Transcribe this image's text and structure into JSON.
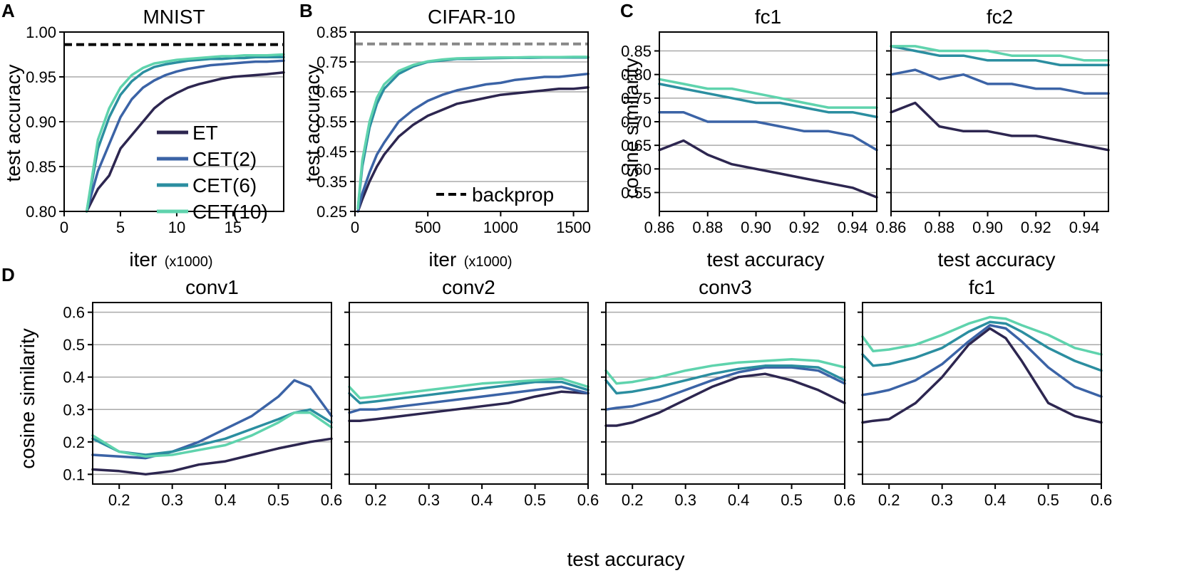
{
  "colors": {
    "ET": "#2d2650",
    "CET(2)": "#3b63a6",
    "CET(6)": "#2b8ea0",
    "CET(10)": "#5fd3ad",
    "grid": "#aaaaaa",
    "backprop_black": "#000000",
    "backprop_gray": "#888888"
  },
  "panel_letters": {
    "A": "A",
    "B": "B",
    "C": "C",
    "D": "D"
  },
  "shared": {
    "series_names": [
      "ET",
      "CET(2)",
      "CET(6)",
      "CET(10)"
    ],
    "backprop_label": "backprop",
    "iter_label": "iter",
    "iter_unit": "(x1000)",
    "test_accuracy_label": "test accuracy",
    "cosine_similarity_label": "cosine similarity"
  },
  "chart_data": [
    {
      "id": "A",
      "type": "line",
      "title": "MNIST",
      "xlabel": "iter (x1000)",
      "ylabel": "test accuracy",
      "xlim": [
        0,
        19.5
      ],
      "ylim": [
        0.8,
        1.0
      ],
      "xticks": [
        0,
        5,
        10,
        15
      ],
      "yticks": [
        0.8,
        0.85,
        0.9,
        0.95,
        1.0
      ],
      "ytick_labels": [
        "0.80",
        "0.85",
        "0.90",
        "0.95",
        "1.00"
      ],
      "grid": true,
      "backprop": 0.986,
      "backprop_style": "black-dashed",
      "legend": "center-right",
      "x": [
        2,
        3,
        4,
        5,
        6,
        7,
        8,
        9,
        10,
        11,
        12,
        13,
        14,
        15,
        16,
        17,
        18,
        19.5
      ],
      "series": [
        {
          "name": "ET",
          "values": [
            0.8,
            0.825,
            0.84,
            0.87,
            0.885,
            0.9,
            0.915,
            0.925,
            0.932,
            0.938,
            0.942,
            0.945,
            0.948,
            0.95,
            0.951,
            0.952,
            0.953,
            0.955
          ]
        },
        {
          "name": "CET(2)",
          "values": [
            0.8,
            0.845,
            0.875,
            0.905,
            0.925,
            0.938,
            0.946,
            0.952,
            0.956,
            0.959,
            0.961,
            0.963,
            0.964,
            0.965,
            0.966,
            0.967,
            0.967,
            0.968
          ]
        },
        {
          "name": "CET(6)",
          "values": [
            0.8,
            0.87,
            0.905,
            0.93,
            0.945,
            0.955,
            0.961,
            0.964,
            0.966,
            0.968,
            0.969,
            0.97,
            0.97,
            0.971,
            0.971,
            0.972,
            0.972,
            0.972
          ]
        },
        {
          "name": "CET(10)",
          "values": [
            0.8,
            0.88,
            0.915,
            0.938,
            0.952,
            0.96,
            0.965,
            0.967,
            0.969,
            0.97,
            0.971,
            0.972,
            0.973,
            0.973,
            0.974,
            0.974,
            0.974,
            0.975
          ]
        }
      ]
    },
    {
      "id": "B",
      "type": "line",
      "title": "CIFAR-10",
      "xlabel": "iter (x1000)",
      "ylabel": "test accuracy",
      "xlim": [
        0,
        1600
      ],
      "ylim": [
        0.25,
        0.85
      ],
      "xticks": [
        0,
        500,
        1000,
        1500
      ],
      "yticks": [
        0.25,
        0.35,
        0.45,
        0.55,
        0.65,
        0.75,
        0.85
      ],
      "ytick_labels": [
        "0.25",
        "0.35",
        "0.45",
        "0.55",
        "0.65",
        "0.75",
        "0.85"
      ],
      "grid": true,
      "backprop": 0.81,
      "backprop_style": "gray-dashed",
      "legend": "bottom-right",
      "x": [
        20,
        50,
        100,
        150,
        200,
        300,
        400,
        500,
        600,
        700,
        800,
        900,
        1000,
        1100,
        1200,
        1300,
        1400,
        1500,
        1600
      ],
      "series": [
        {
          "name": "ET",
          "values": [
            0.25,
            0.29,
            0.35,
            0.4,
            0.44,
            0.5,
            0.54,
            0.57,
            0.59,
            0.61,
            0.62,
            0.63,
            0.64,
            0.645,
            0.65,
            0.655,
            0.66,
            0.66,
            0.665
          ]
        },
        {
          "name": "CET(2)",
          "values": [
            0.25,
            0.31,
            0.38,
            0.44,
            0.48,
            0.55,
            0.59,
            0.62,
            0.64,
            0.655,
            0.665,
            0.675,
            0.68,
            0.69,
            0.695,
            0.7,
            0.7,
            0.705,
            0.71
          ]
        },
        {
          "name": "CET(6)",
          "values": [
            0.26,
            0.4,
            0.53,
            0.61,
            0.66,
            0.71,
            0.735,
            0.75,
            0.755,
            0.76,
            0.76,
            0.762,
            0.763,
            0.764,
            0.764,
            0.765,
            0.765,
            0.765,
            0.765
          ]
        },
        {
          "name": "CET(10)",
          "values": [
            0.26,
            0.42,
            0.55,
            0.63,
            0.675,
            0.72,
            0.74,
            0.752,
            0.758,
            0.762,
            0.763,
            0.764,
            0.765,
            0.765,
            0.766,
            0.766,
            0.766,
            0.767,
            0.767
          ]
        }
      ]
    },
    {
      "id": "C1",
      "type": "line",
      "title": "fc1",
      "xlabel": "test accuracy",
      "ylabel": "cosine similarity",
      "xlim": [
        0.86,
        0.95
      ],
      "ylim": [
        0.51,
        0.89
      ],
      "xticks": [
        0.86,
        0.88,
        0.9,
        0.92,
        0.94
      ],
      "xtick_labels": [
        "0.86",
        "0.88",
        "0.90",
        "0.92",
        "0.94"
      ],
      "yticks": [
        0.55,
        0.6,
        0.65,
        0.7,
        0.75,
        0.8,
        0.85
      ],
      "ytick_labels": [
        "0.55",
        "0.60",
        "0.65",
        "0.70",
        "0.75",
        "0.80",
        "0.85"
      ],
      "grid": true,
      "x": [
        0.86,
        0.87,
        0.88,
        0.89,
        0.9,
        0.91,
        0.92,
        0.93,
        0.94,
        0.95
      ],
      "series": [
        {
          "name": "ET",
          "values": [
            0.64,
            0.66,
            0.63,
            0.61,
            0.6,
            0.59,
            0.58,
            0.57,
            0.56,
            0.54
          ]
        },
        {
          "name": "CET(2)",
          "values": [
            0.72,
            0.72,
            0.7,
            0.7,
            0.7,
            0.69,
            0.68,
            0.68,
            0.67,
            0.64
          ]
        },
        {
          "name": "CET(6)",
          "values": [
            0.78,
            0.77,
            0.76,
            0.75,
            0.74,
            0.74,
            0.73,
            0.72,
            0.72,
            0.71
          ]
        },
        {
          "name": "CET(10)",
          "values": [
            0.79,
            0.78,
            0.77,
            0.77,
            0.76,
            0.75,
            0.74,
            0.73,
            0.73,
            0.73
          ]
        }
      ]
    },
    {
      "id": "C2",
      "type": "line",
      "title": "fc2",
      "xlabel": "test accuracy",
      "ylabel": "",
      "xlim": [
        0.86,
        0.95
      ],
      "ylim": [
        0.51,
        0.89
      ],
      "xticks": [
        0.86,
        0.88,
        0.9,
        0.92,
        0.94
      ],
      "xtick_labels": [
        "0.86",
        "0.88",
        "0.90",
        "0.92",
        "0.94"
      ],
      "yticks": [
        0.55,
        0.6,
        0.65,
        0.7,
        0.75,
        0.8,
        0.85
      ],
      "ytick_labels": [],
      "grid": true,
      "x": [
        0.86,
        0.87,
        0.88,
        0.89,
        0.9,
        0.91,
        0.92,
        0.93,
        0.94,
        0.95
      ],
      "series": [
        {
          "name": "ET",
          "values": [
            0.72,
            0.74,
            0.69,
            0.68,
            0.68,
            0.67,
            0.67,
            0.66,
            0.65,
            0.64
          ]
        },
        {
          "name": "CET(2)",
          "values": [
            0.8,
            0.81,
            0.79,
            0.8,
            0.78,
            0.78,
            0.77,
            0.77,
            0.76,
            0.76
          ]
        },
        {
          "name": "CET(6)",
          "values": [
            0.86,
            0.85,
            0.84,
            0.84,
            0.83,
            0.83,
            0.83,
            0.82,
            0.82,
            0.82
          ]
        },
        {
          "name": "CET(10)",
          "values": [
            0.86,
            0.86,
            0.85,
            0.85,
            0.85,
            0.84,
            0.84,
            0.84,
            0.83,
            0.83
          ]
        }
      ]
    },
    {
      "id": "D1",
      "type": "line",
      "title": "conv1",
      "xlabel": "test accuracy",
      "ylabel": "cosine similarity",
      "xlim": [
        0.15,
        0.6
      ],
      "ylim": [
        0.07,
        0.63
      ],
      "xticks": [
        0.2,
        0.3,
        0.4,
        0.5,
        0.6
      ],
      "xtick_labels": [
        "0.2",
        "0.3",
        "0.4",
        "0.5",
        "0.6"
      ],
      "yticks": [
        0.1,
        0.2,
        0.3,
        0.4,
        0.5,
        0.6
      ],
      "ytick_labels": [
        "0.1",
        "0.2",
        "0.3",
        "0.4",
        "0.5",
        "0.6"
      ],
      "grid": true,
      "x": [
        0.15,
        0.2,
        0.25,
        0.3,
        0.35,
        0.4,
        0.45,
        0.5,
        0.53,
        0.56,
        0.6
      ],
      "series": [
        {
          "name": "ET",
          "values": [
            0.115,
            0.11,
            0.1,
            0.11,
            0.13,
            0.14,
            0.16,
            0.18,
            0.19,
            0.2,
            0.21
          ]
        },
        {
          "name": "CET(2)",
          "values": [
            0.16,
            0.155,
            0.15,
            0.17,
            0.2,
            0.24,
            0.28,
            0.34,
            0.39,
            0.37,
            0.28
          ]
        },
        {
          "name": "CET(6)",
          "values": [
            0.21,
            0.17,
            0.16,
            0.17,
            0.19,
            0.21,
            0.24,
            0.27,
            0.29,
            0.3,
            0.26
          ]
        },
        {
          "name": "CET(10)",
          "values": [
            0.22,
            0.17,
            0.155,
            0.16,
            0.175,
            0.19,
            0.22,
            0.26,
            0.29,
            0.29,
            0.245
          ]
        }
      ]
    },
    {
      "id": "D2",
      "type": "line",
      "title": "conv2",
      "xlabel": "",
      "ylabel": "",
      "xlim": [
        0.15,
        0.6
      ],
      "ylim": [
        0.07,
        0.63
      ],
      "xticks": [
        0.2,
        0.3,
        0.4,
        0.5,
        0.6
      ],
      "xtick_labels": [
        "0.2",
        "0.3",
        "0.4",
        "0.5",
        "0.6"
      ],
      "yticks": [
        0.1,
        0.2,
        0.3,
        0.4,
        0.5,
        0.6
      ],
      "ytick_labels": [],
      "grid": true,
      "x": [
        0.15,
        0.17,
        0.2,
        0.25,
        0.3,
        0.35,
        0.4,
        0.45,
        0.5,
        0.55,
        0.6
      ],
      "series": [
        {
          "name": "ET",
          "values": [
            0.265,
            0.265,
            0.27,
            0.28,
            0.29,
            0.3,
            0.31,
            0.32,
            0.34,
            0.355,
            0.35
          ]
        },
        {
          "name": "CET(2)",
          "values": [
            0.29,
            0.3,
            0.3,
            0.31,
            0.32,
            0.33,
            0.34,
            0.35,
            0.36,
            0.37,
            0.35
          ]
        },
        {
          "name": "CET(6)",
          "values": [
            0.35,
            0.32,
            0.325,
            0.335,
            0.345,
            0.355,
            0.365,
            0.375,
            0.385,
            0.385,
            0.36
          ]
        },
        {
          "name": "CET(10)",
          "values": [
            0.37,
            0.335,
            0.34,
            0.35,
            0.36,
            0.37,
            0.38,
            0.385,
            0.39,
            0.395,
            0.37
          ]
        }
      ]
    },
    {
      "id": "D3",
      "type": "line",
      "title": "conv3",
      "xlabel": "",
      "ylabel": "",
      "xlim": [
        0.15,
        0.6
      ],
      "ylim": [
        0.07,
        0.63
      ],
      "xticks": [
        0.2,
        0.3,
        0.4,
        0.5,
        0.6
      ],
      "xtick_labels": [
        "0.2",
        "0.3",
        "0.4",
        "0.5",
        "0.6"
      ],
      "yticks": [
        0.1,
        0.2,
        0.3,
        0.4,
        0.5,
        0.6
      ],
      "ytick_labels": [],
      "grid": true,
      "x": [
        0.15,
        0.17,
        0.2,
        0.25,
        0.3,
        0.35,
        0.4,
        0.45,
        0.5,
        0.55,
        0.6
      ],
      "series": [
        {
          "name": "ET",
          "values": [
            0.25,
            0.25,
            0.26,
            0.29,
            0.33,
            0.37,
            0.4,
            0.41,
            0.39,
            0.36,
            0.32
          ]
        },
        {
          "name": "CET(2)",
          "values": [
            0.3,
            0.305,
            0.31,
            0.33,
            0.36,
            0.39,
            0.415,
            0.43,
            0.43,
            0.42,
            0.38
          ]
        },
        {
          "name": "CET(6)",
          "values": [
            0.39,
            0.35,
            0.355,
            0.37,
            0.39,
            0.41,
            0.425,
            0.435,
            0.435,
            0.43,
            0.39
          ]
        },
        {
          "name": "CET(10)",
          "values": [
            0.42,
            0.38,
            0.385,
            0.4,
            0.42,
            0.435,
            0.445,
            0.45,
            0.455,
            0.45,
            0.43
          ]
        }
      ]
    },
    {
      "id": "D4",
      "type": "line",
      "title": "fc1",
      "xlabel": "",
      "ylabel": "",
      "xlim": [
        0.15,
        0.6
      ],
      "ylim": [
        0.07,
        0.63
      ],
      "xticks": [
        0.2,
        0.3,
        0.4,
        0.5,
        0.6
      ],
      "xtick_labels": [
        "0.2",
        "0.3",
        "0.4",
        "0.5",
        "0.6"
      ],
      "yticks": [
        0.1,
        0.2,
        0.3,
        0.4,
        0.5,
        0.6
      ],
      "ytick_labels": [],
      "grid": true,
      "x": [
        0.15,
        0.17,
        0.2,
        0.25,
        0.3,
        0.35,
        0.39,
        0.42,
        0.45,
        0.5,
        0.55,
        0.6
      ],
      "series": [
        {
          "name": "ET",
          "values": [
            0.26,
            0.265,
            0.27,
            0.32,
            0.4,
            0.5,
            0.55,
            0.52,
            0.45,
            0.32,
            0.28,
            0.26
          ]
        },
        {
          "name": "CET(2)",
          "values": [
            0.345,
            0.35,
            0.36,
            0.39,
            0.44,
            0.51,
            0.56,
            0.55,
            0.51,
            0.43,
            0.37,
            0.34
          ]
        },
        {
          "name": "CET(6)",
          "values": [
            0.47,
            0.435,
            0.44,
            0.46,
            0.49,
            0.54,
            0.57,
            0.565,
            0.54,
            0.49,
            0.45,
            0.42
          ]
        },
        {
          "name": "CET(10)",
          "values": [
            0.525,
            0.48,
            0.485,
            0.5,
            0.53,
            0.565,
            0.585,
            0.58,
            0.56,
            0.53,
            0.49,
            0.47
          ]
        }
      ]
    }
  ]
}
